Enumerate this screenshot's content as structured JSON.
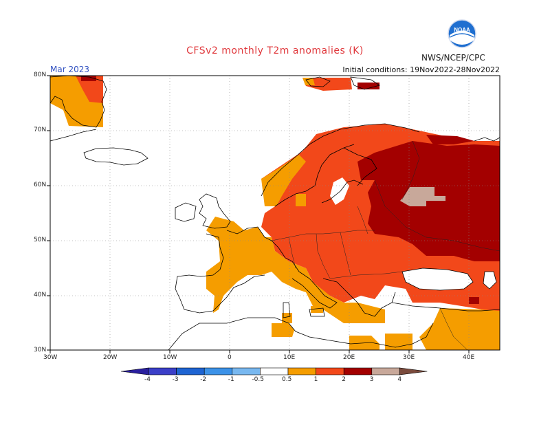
{
  "header": {
    "title": "CFSv2 monthly T2m anomalies (K)",
    "org": "NWS/NCEP/CPC",
    "month": "Mar 2023",
    "init": "Initial conditions: 19Nov2022-28Nov2022"
  },
  "axes": {
    "lat_labels": [
      "30N",
      "40N",
      "50N",
      "60N",
      "70N",
      "80N"
    ],
    "lon_labels": [
      "30W",
      "20W",
      "10W",
      "0",
      "10E",
      "20E",
      "30E",
      "40E"
    ],
    "lat_range": [
      30,
      80
    ],
    "lon_range": [
      -30,
      45
    ],
    "grid": "dotted"
  },
  "colorbar": {
    "ticks": [
      "-4",
      "-3",
      "-2",
      "-1",
      "-0.5",
      "0.5",
      "1",
      "2",
      "3",
      "4"
    ],
    "colors": [
      "#2a1f9e",
      "#3b3fc8",
      "#1e64d2",
      "#3c92e8",
      "#78b8f0",
      "#ffffff",
      "#f59d00",
      "#f2481a",
      "#a30000",
      "#c8a89a",
      "#7a4a3c"
    ]
  },
  "map_colors": {
    "c05_1": "#f59d00",
    "c1_2": "#f2481a",
    "c2_3": "#a30000",
    "c3_4": "#c8a89a",
    "coast": "#000000"
  }
}
